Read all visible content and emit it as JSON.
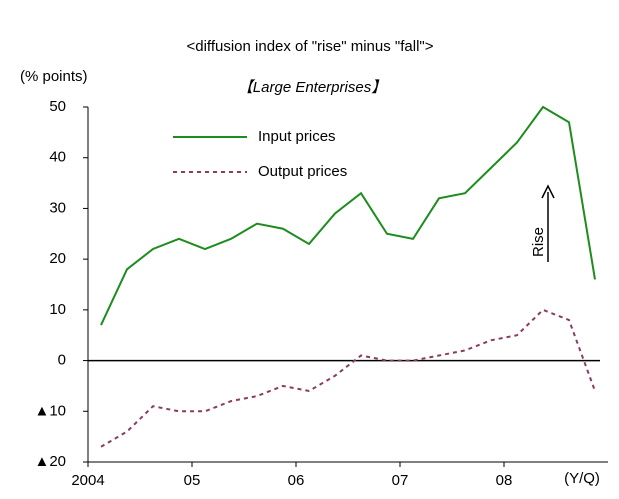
{
  "chart_data": {
    "type": "line",
    "title": "<diffusion index of \"rise\" minus \"fall\">",
    "subtitle": "【Large Enterprises】",
    "y_label": "(% points)",
    "x_label": "(Y/Q)",
    "annotation": "Rise",
    "x": [
      2004.125,
      2004.375,
      2004.625,
      2004.875,
      2005.125,
      2005.375,
      2005.625,
      2005.875,
      2006.125,
      2006.375,
      2006.625,
      2006.875,
      2007.125,
      2007.375,
      2007.625,
      2007.875,
      2008.125,
      2008.375,
      2008.625,
      2008.875
    ],
    "series": [
      {
        "name": "Input prices",
        "color": "#1e8c1e",
        "dash": false,
        "values": [
          7,
          18,
          22,
          24,
          22,
          24,
          27,
          26,
          23,
          29,
          33,
          25,
          24,
          32,
          33,
          38,
          43,
          50,
          47,
          16
        ]
      },
      {
        "name": "Output prices",
        "color": "#8b3a62",
        "dash": true,
        "values": [
          -17,
          -14,
          -9,
          -10,
          -10,
          -8,
          -7,
          -5,
          -6,
          -3,
          1,
          0,
          0,
          1,
          2,
          4,
          5,
          10,
          8,
          -6
        ]
      }
    ],
    "xlim": [
      2004,
      2009
    ],
    "xticks": [
      {
        "value": 2004,
        "label": "2004"
      },
      {
        "value": 2005,
        "label": "05"
      },
      {
        "value": 2006,
        "label": "06"
      },
      {
        "value": 2007,
        "label": "07"
      },
      {
        "value": 2008,
        "label": "08"
      }
    ],
    "ylim": [
      -20,
      50
    ],
    "yticks": [
      {
        "value": -20,
        "label": "▲20"
      },
      {
        "value": -10,
        "label": "▲10"
      },
      0,
      10,
      20,
      30,
      40,
      50
    ],
    "zero_line": true
  }
}
